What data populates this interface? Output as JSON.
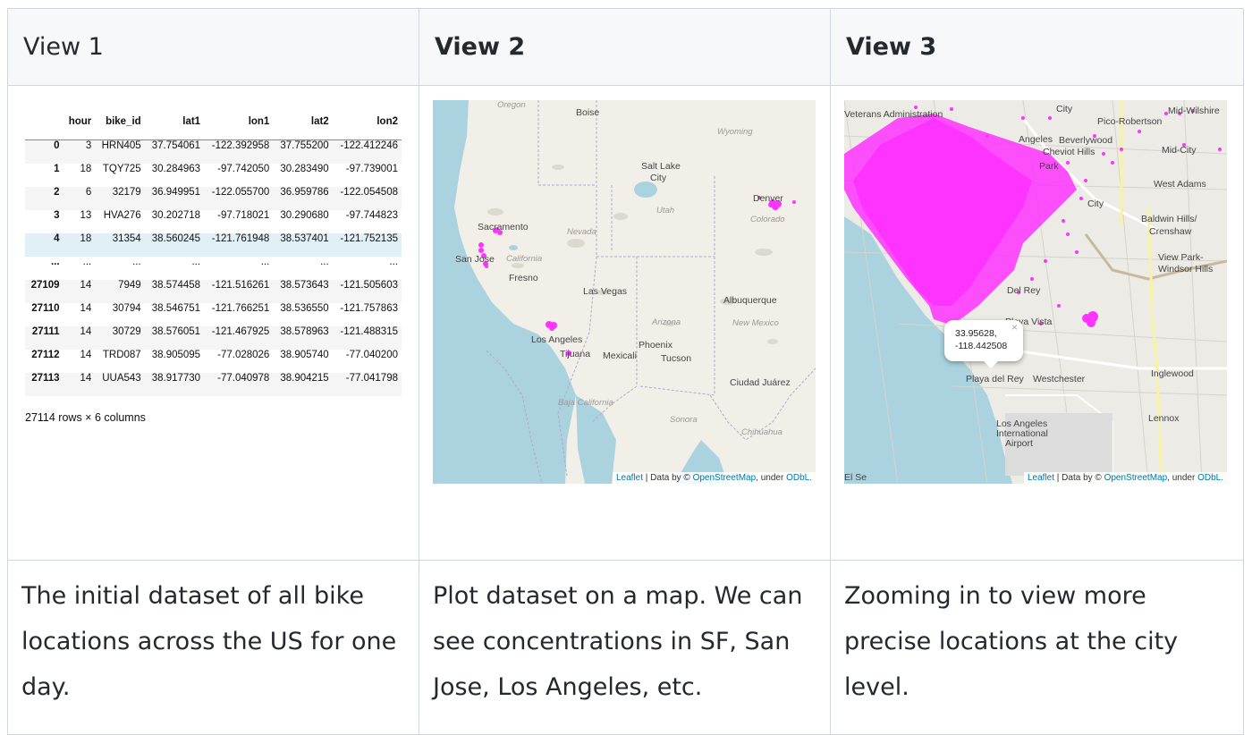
{
  "headers": [
    "View 1",
    "View 2",
    "View 3"
  ],
  "dataframe": {
    "columns": [
      "",
      "hour",
      "bike_id",
      "lat1",
      "lon1",
      "lat2",
      "lon2"
    ],
    "rows": [
      [
        "0",
        "3",
        "HRN405",
        "37.754061",
        "-122.392958",
        "37.755200",
        "-122.412246"
      ],
      [
        "1",
        "18",
        "TQY725",
        "30.284963",
        "-97.742050",
        "30.283490",
        "-97.739001"
      ],
      [
        "2",
        "6",
        "32179",
        "36.949951",
        "-122.055700",
        "36.959786",
        "-122.054508"
      ],
      [
        "3",
        "13",
        "HVA276",
        "30.202718",
        "-97.718021",
        "30.290680",
        "-97.744823"
      ],
      [
        "4",
        "18",
        "31354",
        "38.560245",
        "-121.761948",
        "38.537401",
        "-121.752135"
      ],
      [
        "...",
        "...",
        "...",
        "...",
        "...",
        "...",
        "..."
      ],
      [
        "27109",
        "14",
        "7949",
        "38.574458",
        "-121.516261",
        "38.573643",
        "-121.505603"
      ],
      [
        "27110",
        "14",
        "30794",
        "38.546751",
        "-121.766251",
        "38.536550",
        "-121.757863"
      ],
      [
        "27111",
        "14",
        "30729",
        "38.576051",
        "-121.467925",
        "38.578963",
        "-121.488315"
      ],
      [
        "27112",
        "14",
        "TRD087",
        "38.905095",
        "-77.028026",
        "38.905740",
        "-77.040200"
      ],
      [
        "27113",
        "14",
        "UUA543",
        "38.917730",
        "-77.040978",
        "38.904215",
        "-77.041798"
      ]
    ],
    "shape": "27114 rows × 6 columns"
  },
  "map1": {
    "labels": [
      "Oregon",
      "Boise",
      "Wyoming",
      "Salt Lake",
      "City",
      "Utah",
      "Nevada",
      "Denver",
      "Colorado",
      "Sacramento",
      "San Jose",
      "California",
      "Fresno",
      "Las Vegas",
      "Albuquerque",
      "Arizona",
      "New Mexico",
      "Los Angeles",
      "Phoenix",
      "Tucson",
      "Tijuana",
      "Mexicali",
      "Ciudad Juárez",
      "Baja California",
      "Sonora",
      "Chihuahua"
    ],
    "attribution": {
      "leaflet": "Leaflet",
      "mid": " | Data by © ",
      "osm": "OpenStreetMap",
      "under": ", under ",
      "odbl": "ODbL."
    }
  },
  "map2": {
    "labels": [
      "Veterans Administration",
      "City",
      "Pico-Robertson",
      "Mid-Wilshire",
      "Angeles",
      "Beverlywood",
      "Cheviot Hills",
      "Mid-City",
      "Park",
      "West Adams",
      "City",
      "Baldwin Hills/",
      "Crenshaw",
      "View Park-",
      "Windsor Hills",
      "Del Rey",
      "Playa Vista",
      "Playa del Rey",
      "Westchester",
      "Inglewood",
      "Lennox",
      "Los Angeles",
      "International",
      "Airport",
      "El Se"
    ],
    "popup": {
      "lat": "33.95628,",
      "lon": "-118.442508",
      "close": "×"
    },
    "attribution": {
      "leaflet": "Leaflet",
      "mid": " | Data by © ",
      "osm": "OpenStreetMap",
      "under": ", under ",
      "odbl": "ODbL."
    }
  },
  "captions": [
    "The initial dataset of all bike locations across the US for one day.",
    "Plot dataset on a map. We can see concentrations in SF, San Jose, Los Angeles, etc.",
    "Zooming in to view more precise locations at the city level."
  ],
  "colors": {
    "marker": "#ff33ff",
    "water": "#aad3df",
    "land": "#f2efe9",
    "border": "#d0d7de",
    "header_bg": "#f6f8fa"
  }
}
